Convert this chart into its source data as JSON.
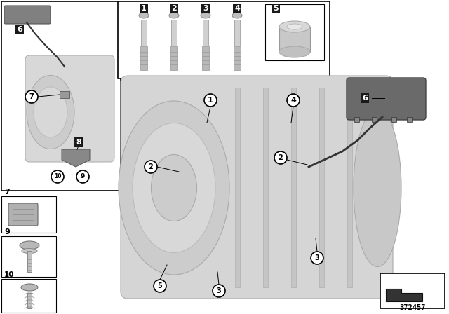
{
  "bg_color": "#ffffff",
  "part_number": "372457",
  "gray_light": "#d8d8d8",
  "gray_mid": "#b8b8b8",
  "gray_dark": "#888888",
  "dark_label_bg": "#1a1a1a",
  "dark_label_fg": "#ffffff",
  "bolt_labels": [
    "1",
    "2",
    "3",
    "4",
    "5"
  ],
  "bolt_x": [
    205,
    248,
    293,
    338,
    410
  ],
  "cable_color": "#333333",
  "line_color": "#000000"
}
